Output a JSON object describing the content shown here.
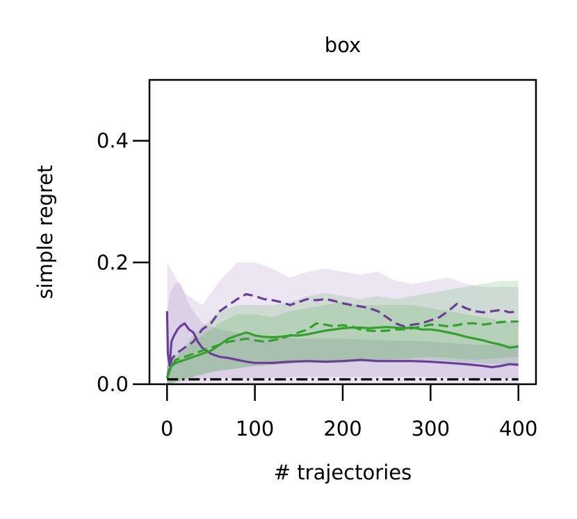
{
  "chart_data": {
    "type": "line",
    "title": "box",
    "xlabel": "# trajectories",
    "ylabel": "simple regret",
    "xlim": [
      -20,
      420
    ],
    "ylim": [
      0,
      0.5
    ],
    "x_ticks": [
      0,
      100,
      200,
      300,
      400
    ],
    "x_tick_labels": [
      "0",
      "100",
      "200",
      "300",
      "400"
    ],
    "y_ticks": [
      0.0,
      0.2,
      0.4
    ],
    "y_tick_labels": [
      "0.0",
      "0.2",
      "0.4"
    ],
    "grid": false,
    "legend": "none",
    "colors": {
      "purple": "#6a3d9a",
      "green": "#33a02c",
      "baseline": "#000000"
    },
    "series": [
      {
        "color": "#6a3d9a",
        "style": "dashed",
        "points": [
          [
            0,
            0.01
          ],
          [
            5,
            0.04
          ],
          [
            10,
            0.05
          ],
          [
            20,
            0.06
          ],
          [
            30,
            0.07
          ],
          [
            40,
            0.09
          ],
          [
            50,
            0.1
          ],
          [
            60,
            0.12
          ],
          [
            70,
            0.13
          ],
          [
            80,
            0.14
          ],
          [
            90,
            0.148
          ],
          [
            100,
            0.145
          ],
          [
            110,
            0.14
          ],
          [
            120,
            0.138
          ],
          [
            130,
            0.135
          ],
          [
            140,
            0.13
          ],
          [
            150,
            0.135
          ],
          [
            160,
            0.14
          ],
          [
            170,
            0.138
          ],
          [
            180,
            0.14
          ],
          [
            190,
            0.137
          ],
          [
            200,
            0.133
          ],
          [
            210,
            0.13
          ],
          [
            220,
            0.128
          ],
          [
            230,
            0.125
          ],
          [
            240,
            0.12
          ],
          [
            250,
            0.11
          ],
          [
            260,
            0.1
          ],
          [
            270,
            0.095
          ],
          [
            280,
            0.098
          ],
          [
            290,
            0.1
          ],
          [
            300,
            0.105
          ],
          [
            310,
            0.11
          ],
          [
            320,
            0.12
          ],
          [
            330,
            0.132
          ],
          [
            340,
            0.125
          ],
          [
            350,
            0.12
          ],
          [
            360,
            0.118
          ],
          [
            370,
            0.12
          ],
          [
            380,
            0.122
          ],
          [
            390,
            0.118
          ],
          [
            400,
            0.12
          ]
        ],
        "band_lower": [
          [
            0,
            0
          ],
          [
            10,
            0
          ],
          [
            30,
            0
          ],
          [
            60,
            0
          ],
          [
            100,
            0
          ],
          [
            150,
            0
          ],
          [
            200,
            0
          ],
          [
            250,
            0
          ],
          [
            300,
            0
          ],
          [
            350,
            0
          ],
          [
            400,
            0
          ]
        ],
        "band_upper": [
          [
            0,
            0.2
          ],
          [
            20,
            0.15
          ],
          [
            40,
            0.13
          ],
          [
            60,
            0.17
          ],
          [
            80,
            0.2
          ],
          [
            100,
            0.2
          ],
          [
            120,
            0.19
          ],
          [
            140,
            0.175
          ],
          [
            160,
            0.185
          ],
          [
            180,
            0.19
          ],
          [
            200,
            0.185
          ],
          [
            220,
            0.18
          ],
          [
            240,
            0.185
          ],
          [
            260,
            0.17
          ],
          [
            280,
            0.165
          ],
          [
            300,
            0.17
          ],
          [
            320,
            0.175
          ],
          [
            340,
            0.165
          ],
          [
            360,
            0.16
          ],
          [
            380,
            0.16
          ],
          [
            400,
            0.16
          ]
        ]
      },
      {
        "color": "#6a3d9a",
        "style": "solid",
        "points": [
          [
            0,
            0.12
          ],
          [
            1,
            0.05
          ],
          [
            3,
            0.03
          ],
          [
            5,
            0.07
          ],
          [
            8,
            0.08
          ],
          [
            12,
            0.09
          ],
          [
            15,
            0.095
          ],
          [
            20,
            0.1
          ],
          [
            25,
            0.09
          ],
          [
            30,
            0.085
          ],
          [
            35,
            0.07
          ],
          [
            40,
            0.06
          ],
          [
            45,
            0.055
          ],
          [
            50,
            0.05
          ],
          [
            60,
            0.045
          ],
          [
            70,
            0.043
          ],
          [
            80,
            0.04
          ],
          [
            90,
            0.037
          ],
          [
            100,
            0.035
          ],
          [
            120,
            0.035
          ],
          [
            140,
            0.037
          ],
          [
            160,
            0.038
          ],
          [
            180,
            0.037
          ],
          [
            200,
            0.038
          ],
          [
            220,
            0.04
          ],
          [
            240,
            0.038
          ],
          [
            260,
            0.038
          ],
          [
            280,
            0.038
          ],
          [
            300,
            0.037
          ],
          [
            320,
            0.035
          ],
          [
            340,
            0.033
          ],
          [
            360,
            0.03
          ],
          [
            370,
            0.028
          ],
          [
            380,
            0.03
          ],
          [
            390,
            0.033
          ],
          [
            400,
            0.032
          ]
        ],
        "band_lower": [
          [
            0,
            0
          ],
          [
            20,
            0.005
          ],
          [
            50,
            0.01
          ],
          [
            100,
            0.01
          ],
          [
            150,
            0.012
          ],
          [
            200,
            0.012
          ],
          [
            250,
            0.012
          ],
          [
            300,
            0.012
          ],
          [
            350,
            0.01
          ],
          [
            400,
            0.01
          ]
        ],
        "band_upper": [
          [
            0,
            0.12
          ],
          [
            5,
            0.16
          ],
          [
            15,
            0.17
          ],
          [
            25,
            0.13
          ],
          [
            40,
            0.1
          ],
          [
            60,
            0.09
          ],
          [
            80,
            0.085
          ],
          [
            100,
            0.08
          ],
          [
            150,
            0.075
          ],
          [
            200,
            0.075
          ],
          [
            250,
            0.072
          ],
          [
            300,
            0.07
          ],
          [
            350,
            0.065
          ],
          [
            400,
            0.065
          ]
        ]
      },
      {
        "color": "#33a02c",
        "style": "dashed",
        "points": [
          [
            0,
            0.01
          ],
          [
            5,
            0.03
          ],
          [
            10,
            0.04
          ],
          [
            20,
            0.045
          ],
          [
            30,
            0.05
          ],
          [
            40,
            0.055
          ],
          [
            50,
            0.06
          ],
          [
            60,
            0.065
          ],
          [
            70,
            0.07
          ],
          [
            80,
            0.072
          ],
          [
            90,
            0.075
          ],
          [
            100,
            0.072
          ],
          [
            110,
            0.07
          ],
          [
            120,
            0.072
          ],
          [
            130,
            0.075
          ],
          [
            140,
            0.08
          ],
          [
            150,
            0.085
          ],
          [
            160,
            0.09
          ],
          [
            170,
            0.1
          ],
          [
            180,
            0.098
          ],
          [
            190,
            0.095
          ],
          [
            200,
            0.097
          ],
          [
            210,
            0.095
          ],
          [
            220,
            0.09
          ],
          [
            230,
            0.088
          ],
          [
            240,
            0.087
          ],
          [
            250,
            0.088
          ],
          [
            260,
            0.09
          ],
          [
            270,
            0.09
          ],
          [
            280,
            0.092
          ],
          [
            290,
            0.095
          ],
          [
            300,
            0.098
          ],
          [
            310,
            0.097
          ],
          [
            320,
            0.095
          ],
          [
            330,
            0.097
          ],
          [
            340,
            0.1
          ],
          [
            350,
            0.1
          ],
          [
            360,
            0.098
          ],
          [
            370,
            0.1
          ],
          [
            380,
            0.102
          ],
          [
            390,
            0.103
          ],
          [
            400,
            0.103
          ]
        ],
        "band_lower": [
          [
            0,
            0
          ],
          [
            50,
            0.02
          ],
          [
            100,
            0.03
          ],
          [
            150,
            0.035
          ],
          [
            200,
            0.04
          ],
          [
            250,
            0.04
          ],
          [
            300,
            0.045
          ],
          [
            350,
            0.04
          ],
          [
            400,
            0.045
          ]
        ],
        "band_upper": [
          [
            0,
            0.03
          ],
          [
            30,
            0.08
          ],
          [
            60,
            0.12
          ],
          [
            80,
            0.13
          ],
          [
            100,
            0.13
          ],
          [
            120,
            0.13
          ],
          [
            140,
            0.135
          ],
          [
            160,
            0.145
          ],
          [
            180,
            0.15
          ],
          [
            200,
            0.145
          ],
          [
            220,
            0.14
          ],
          [
            240,
            0.145
          ],
          [
            260,
            0.14
          ],
          [
            280,
            0.145
          ],
          [
            300,
            0.15
          ],
          [
            320,
            0.155
          ],
          [
            340,
            0.16
          ],
          [
            360,
            0.165
          ],
          [
            380,
            0.17
          ],
          [
            400,
            0.17
          ]
        ]
      },
      {
        "color": "#33a02c",
        "style": "solid",
        "points": [
          [
            0,
            0.01
          ],
          [
            5,
            0.03
          ],
          [
            10,
            0.035
          ],
          [
            20,
            0.04
          ],
          [
            30,
            0.045
          ],
          [
            40,
            0.05
          ],
          [
            50,
            0.055
          ],
          [
            60,
            0.065
          ],
          [
            70,
            0.075
          ],
          [
            80,
            0.08
          ],
          [
            90,
            0.085
          ],
          [
            95,
            0.083
          ],
          [
            100,
            0.08
          ],
          [
            110,
            0.078
          ],
          [
            120,
            0.077
          ],
          [
            130,
            0.078
          ],
          [
            140,
            0.08
          ],
          [
            150,
            0.08
          ],
          [
            160,
            0.082
          ],
          [
            170,
            0.085
          ],
          [
            180,
            0.088
          ],
          [
            190,
            0.09
          ],
          [
            200,
            0.092
          ],
          [
            210,
            0.093
          ],
          [
            220,
            0.093
          ],
          [
            230,
            0.092
          ],
          [
            240,
            0.093
          ],
          [
            250,
            0.094
          ],
          [
            260,
            0.093
          ],
          [
            270,
            0.092
          ],
          [
            280,
            0.093
          ],
          [
            290,
            0.09
          ],
          [
            300,
            0.09
          ],
          [
            310,
            0.088
          ],
          [
            320,
            0.085
          ],
          [
            330,
            0.082
          ],
          [
            340,
            0.078
          ],
          [
            350,
            0.075
          ],
          [
            360,
            0.072
          ],
          [
            370,
            0.068
          ],
          [
            380,
            0.065
          ],
          [
            390,
            0.06
          ],
          [
            400,
            0.062
          ]
        ],
        "band_lower": [
          [
            0,
            0
          ],
          [
            50,
            0.02
          ],
          [
            100,
            0.03
          ],
          [
            150,
            0.035
          ],
          [
            200,
            0.035
          ],
          [
            250,
            0.04
          ],
          [
            300,
            0.04
          ],
          [
            350,
            0.035
          ],
          [
            400,
            0.03
          ]
        ],
        "band_upper": [
          [
            0,
            0.03
          ],
          [
            30,
            0.07
          ],
          [
            60,
            0.1
          ],
          [
            80,
            0.115
          ],
          [
            100,
            0.115
          ],
          [
            120,
            0.11
          ],
          [
            140,
            0.12
          ],
          [
            160,
            0.125
          ],
          [
            180,
            0.13
          ],
          [
            200,
            0.135
          ],
          [
            220,
            0.13
          ],
          [
            240,
            0.13
          ],
          [
            260,
            0.13
          ],
          [
            280,
            0.13
          ],
          [
            300,
            0.125
          ],
          [
            320,
            0.12
          ],
          [
            340,
            0.115
          ],
          [
            360,
            0.11
          ],
          [
            380,
            0.105
          ],
          [
            400,
            0.1
          ]
        ]
      },
      {
        "color": "#000000",
        "style": "dashdot",
        "points": [
          [
            0,
            0.008
          ],
          [
            400,
            0.008
          ]
        ]
      }
    ]
  }
}
